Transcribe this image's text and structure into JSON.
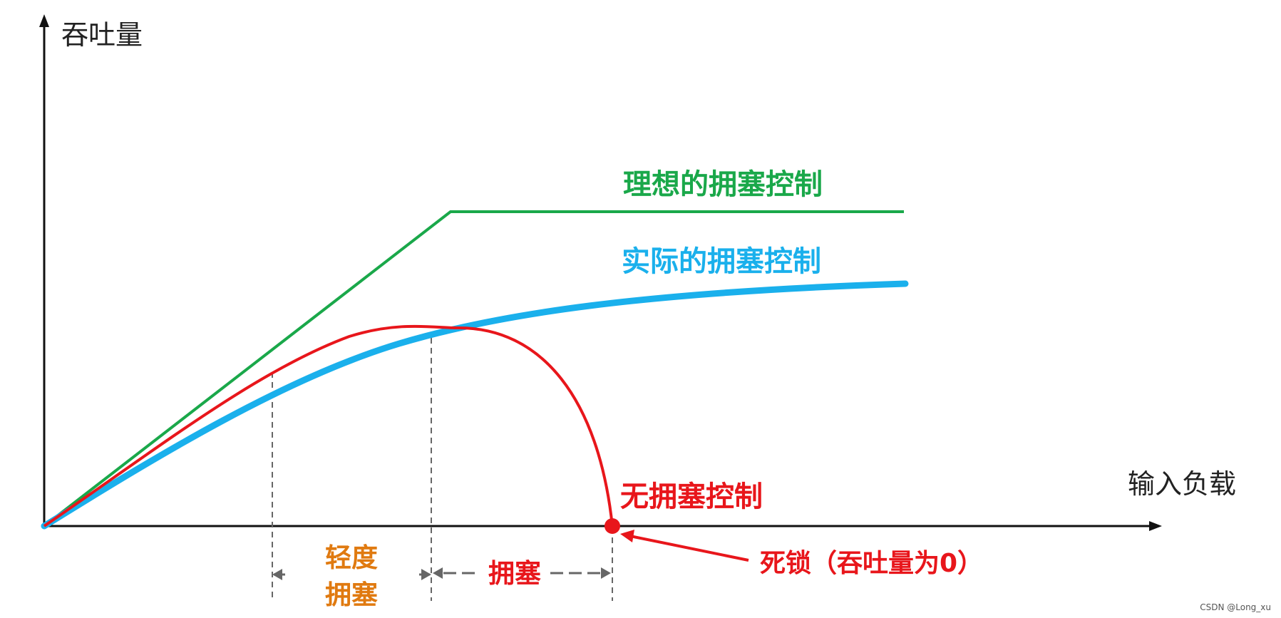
{
  "axes": {
    "y_title": "吞吐量",
    "x_title": "输入负载"
  },
  "curves": {
    "ideal": {
      "label": "理想的拥塞控制",
      "color": "#1aa84a"
    },
    "actual": {
      "label": "实际的拥塞控制",
      "color": "#1ab0ec"
    },
    "none": {
      "label": "无拥塞控制",
      "color": "#e8161b"
    }
  },
  "regions": {
    "light_line1": "轻度",
    "light_line2": "拥塞",
    "light_color": "#e07a10",
    "congestion": "拥塞",
    "congestion_color": "#e8161b"
  },
  "deadlock": {
    "label": "死锁（吞吐量为0）",
    "color": "#e8161b"
  },
  "watermark": "CSDN @Long_xu"
}
